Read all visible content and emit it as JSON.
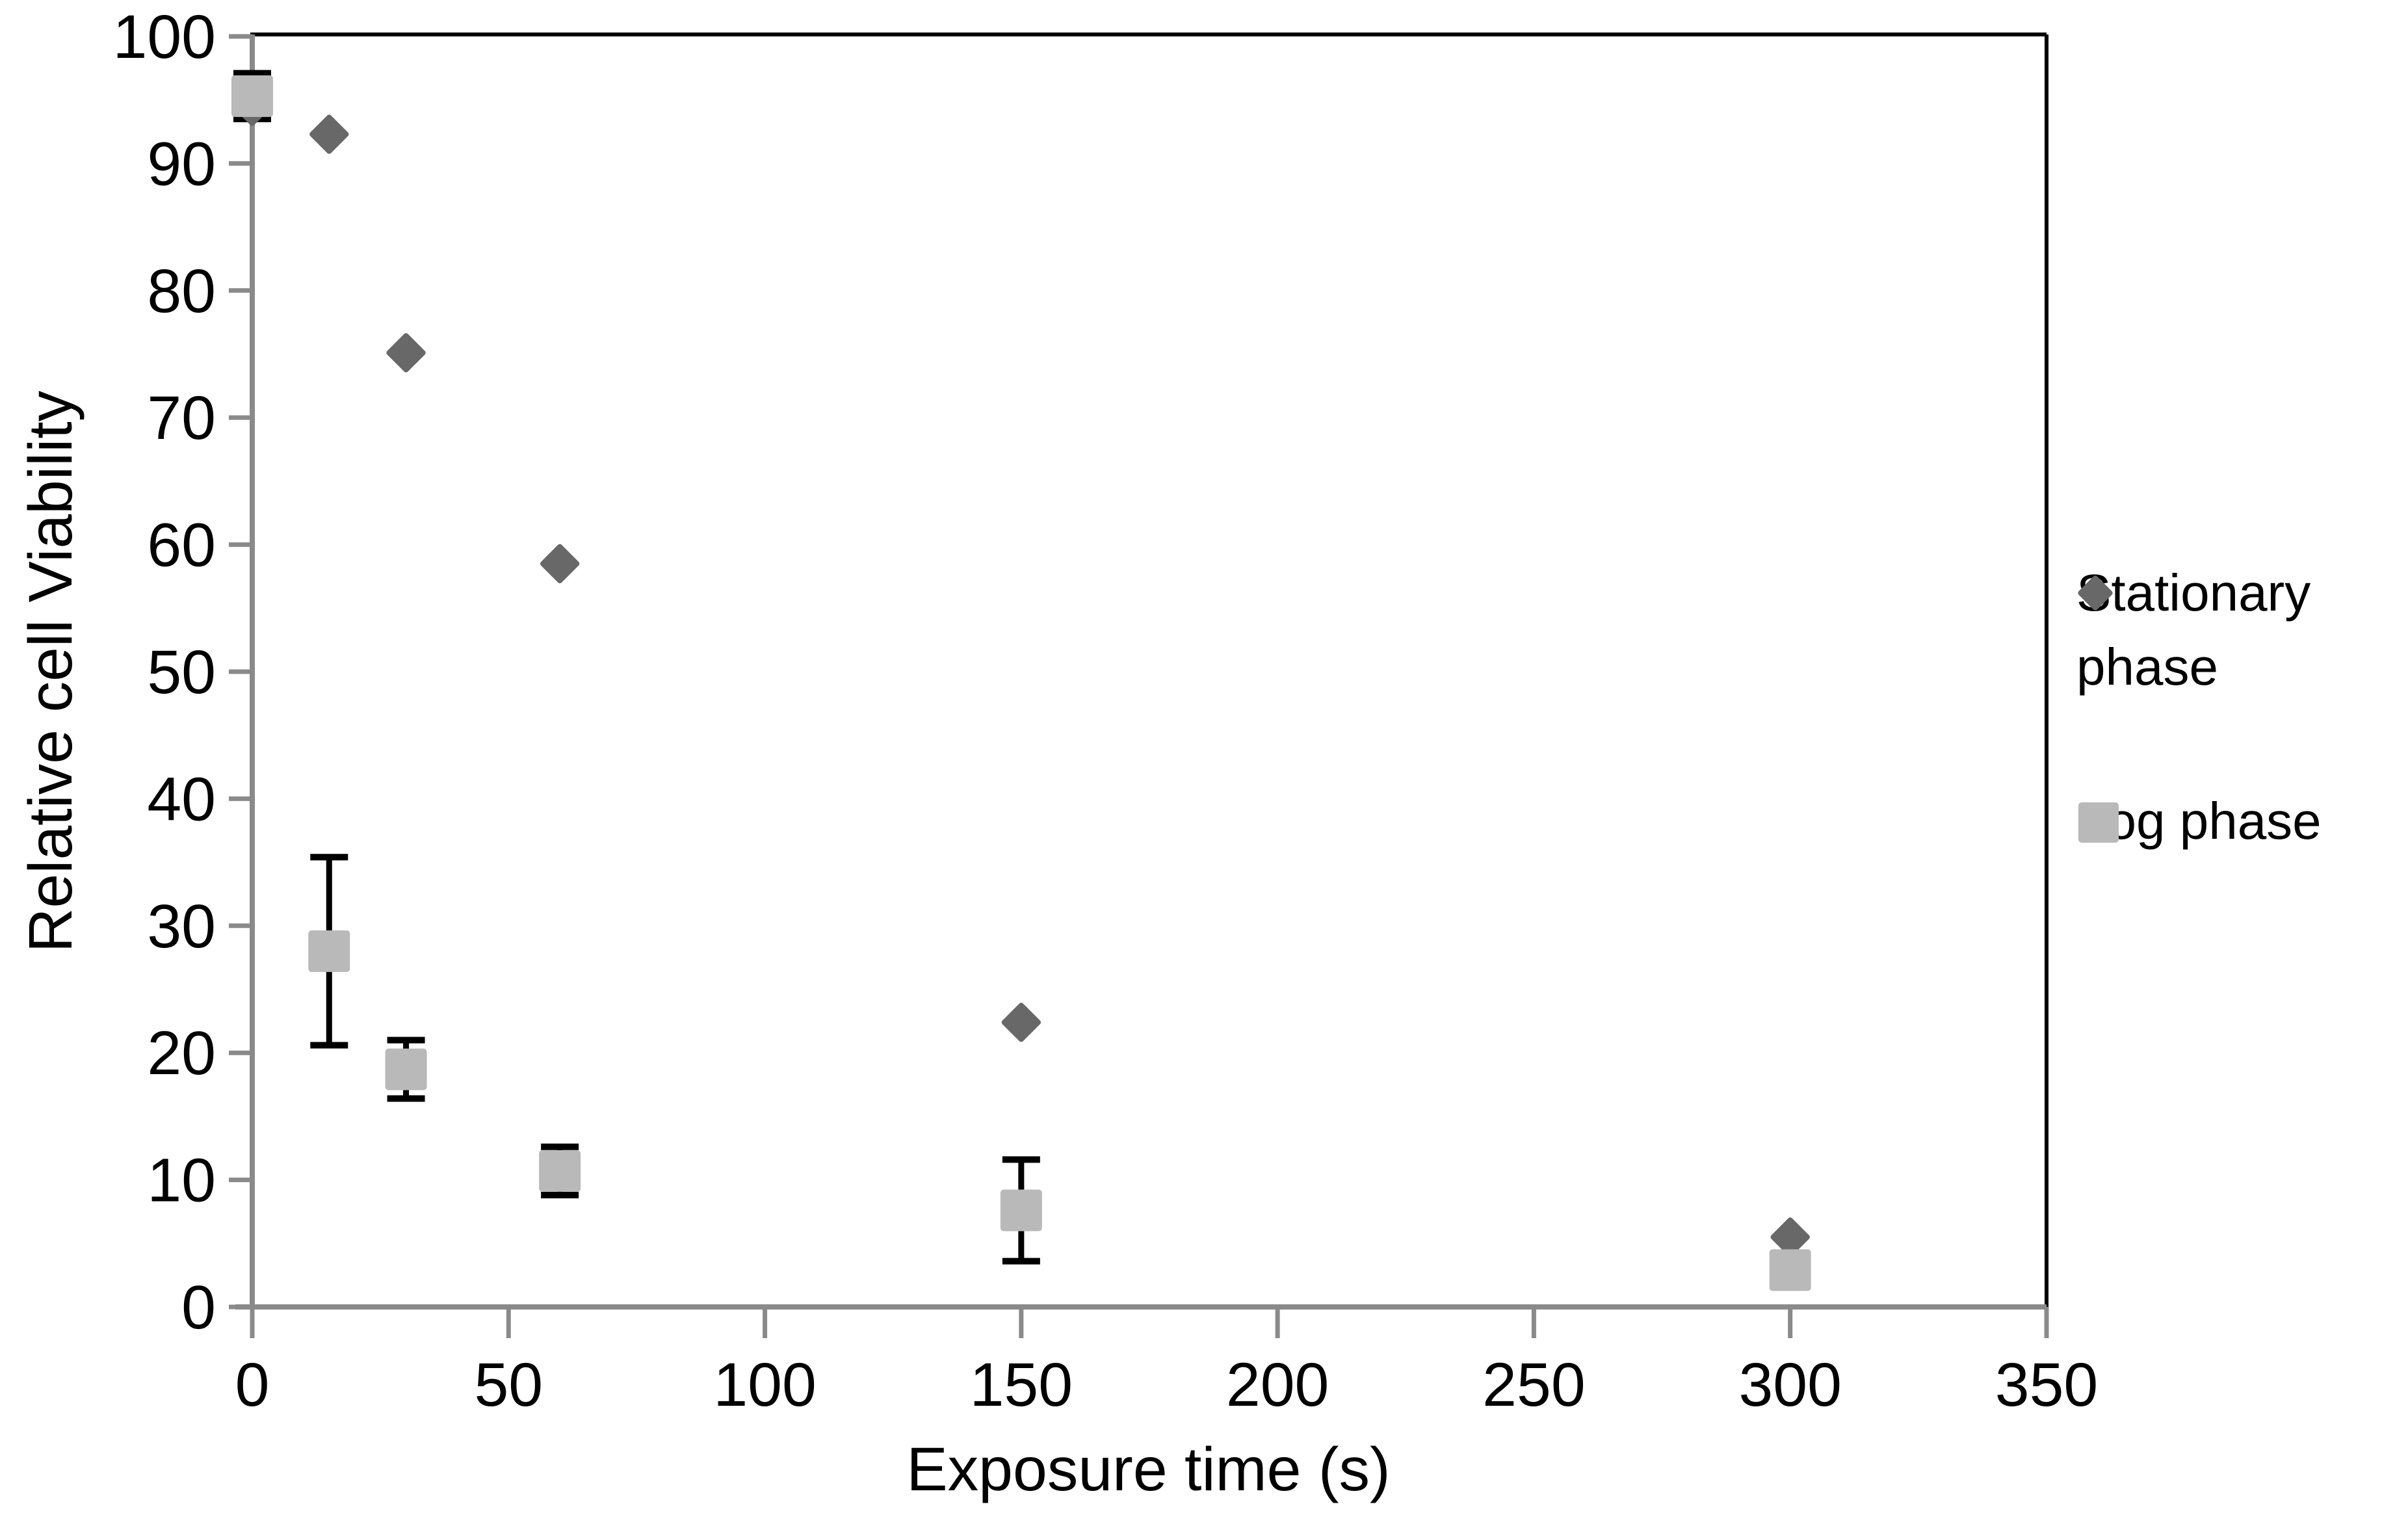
{
  "chart_data": {
    "type": "scatter",
    "title": "",
    "xlabel": "Exposure time (s)",
    "ylabel": "Relative cell Viability",
    "xlim": [
      0,
      350
    ],
    "ylim": [
      0,
      100
    ],
    "xticks": [
      0,
      50,
      100,
      150,
      200,
      250,
      300,
      350
    ],
    "yticks": [
      0,
      10,
      20,
      30,
      40,
      50,
      60,
      70,
      80,
      90,
      100
    ],
    "grid": false,
    "legend_position": "right",
    "series": [
      {
        "name": "Stationary phase",
        "marker": "diamond",
        "color": "#686868",
        "x": [
          0,
          15,
          30,
          60,
          150,
          300
        ],
        "y": [
          94.5,
          92.3,
          75.1,
          58.5,
          22.4,
          5.5
        ]
      },
      {
        "name": "Log phase",
        "marker": "square",
        "color": "#b9b9b9",
        "x": [
          0,
          15,
          30,
          60,
          150,
          300
        ],
        "y": [
          95.3,
          28.0,
          18.7,
          10.7,
          7.6,
          2.9
        ],
        "yerr": [
          1.8,
          7.4,
          2.3,
          1.9,
          4.0,
          0
        ]
      }
    ],
    "colors": {
      "error_bar": "#000000",
      "axis": "#8a8a8a",
      "plot_border": "#000000",
      "text": "#000000",
      "background": "#ffffff"
    }
  }
}
